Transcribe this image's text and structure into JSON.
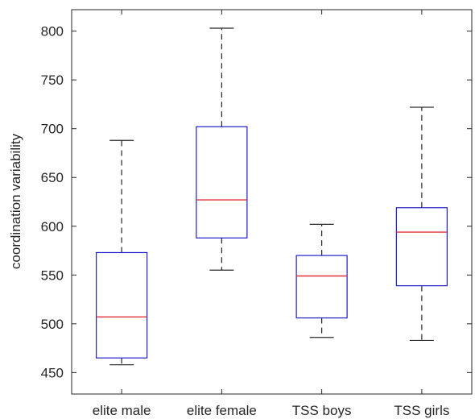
{
  "chart_data": {
    "type": "boxplot",
    "title": "",
    "xlabel": "",
    "ylabel": "coordination variability",
    "ylim": [
      428,
      822
    ],
    "yticks": [
      450,
      500,
      550,
      600,
      650,
      700,
      750,
      800
    ],
    "grid": false,
    "categories": [
      "elite male",
      "elite female",
      "TSS boys",
      "TSS girls"
    ],
    "boxes": [
      {
        "category": "elite male",
        "whisker_low": 458,
        "q1": 465,
        "median": 507,
        "q3": 573,
        "whisker_high": 688
      },
      {
        "category": "elite female",
        "whisker_low": 555,
        "q1": 588,
        "median": 627,
        "q3": 702,
        "whisker_high": 803
      },
      {
        "category": "TSS boys",
        "whisker_low": 486,
        "q1": 506,
        "median": 549,
        "q3": 570,
        "whisker_high": 602
      },
      {
        "category": "TSS girls",
        "whisker_low": 483,
        "q1": 539,
        "median": 594,
        "q3": 619,
        "whisker_high": 722
      }
    ],
    "colors": {
      "box": "#1f1fc8",
      "median": "#e0303a",
      "whisker": "#262626",
      "axis": "#262626"
    }
  }
}
